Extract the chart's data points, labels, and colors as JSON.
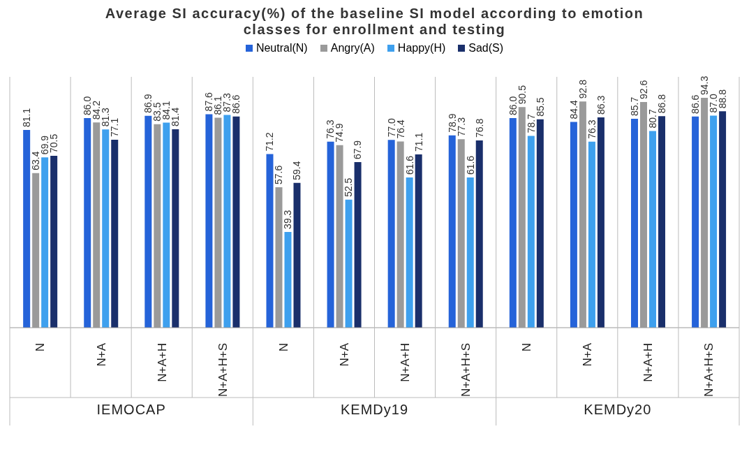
{
  "chart_data": {
    "type": "bar",
    "title": "Average SI accuracy(%) of the baseline SI model according to emotion classes for  enrollment and testing",
    "categories": [
      "N",
      "N+A",
      "N+A+H",
      "N+A+H+S",
      "N",
      "N+A",
      "N+A+H",
      "N+A+H+S",
      "N",
      "N+A",
      "N+A+H",
      "N+A+H+S"
    ],
    "series": [
      {
        "name": "Neutral(N)",
        "color": "#2563d9",
        "values": [
          81.1,
          86.0,
          86.9,
          87.6,
          71.2,
          76.3,
          77.0,
          78.9,
          86.0,
          84.4,
          85.7,
          86.6
        ],
        "value_labels": [
          "81.1",
          "86.0",
          "86.9",
          "87.6",
          "71.2",
          "76.3",
          "77.0",
          "78.9",
          "86.0",
          "84.4",
          "85.7",
          "86.6"
        ]
      },
      {
        "name": "Angry(A)",
        "color": "#9a9a9a",
        "values": [
          63.4,
          84.2,
          83.5,
          86.1,
          57.6,
          74.9,
          76.4,
          77.3,
          90.5,
          92.8,
          92.6,
          94.3
        ],
        "value_labels": [
          "63.4",
          "84.2",
          "83.5",
          "86.1",
          "57.6",
          "74.9",
          "76.4",
          "77.3",
          "90.5",
          "92.8",
          "92.6",
          "94.3"
        ]
      },
      {
        "name": "Happy(H)",
        "color": "#3ea0ee",
        "values": [
          69.9,
          81.3,
          84.1,
          87.3,
          39.3,
          52.5,
          61.6,
          61.6,
          78.7,
          76.3,
          80.7,
          87.0
        ],
        "value_labels": [
          "69.9",
          "81.3",
          "84.1",
          "87.3",
          "39.3",
          "52.5",
          "61.6",
          "61.6",
          "78.7",
          "76.3",
          "80.7",
          "87.0"
        ]
      },
      {
        "name": "Sad(S)",
        "color": "#1a2f6b",
        "values": [
          70.5,
          77.1,
          81.4,
          86.6,
          59.4,
          67.9,
          71.1,
          76.8,
          85.5,
          86.3,
          86.8,
          88.8
        ],
        "value_labels": [
          "70.5",
          "77.1",
          "81.4",
          "86.6",
          "59.4",
          "67.9",
          "71.1",
          "76.8",
          "85.5",
          "86.3",
          "86.8",
          "88.8"
        ]
      }
    ],
    "legend": "top",
    "annotations": [
      "IEMOCAP",
      "KEMDy19",
      "KEMDy20"
    ]
  }
}
